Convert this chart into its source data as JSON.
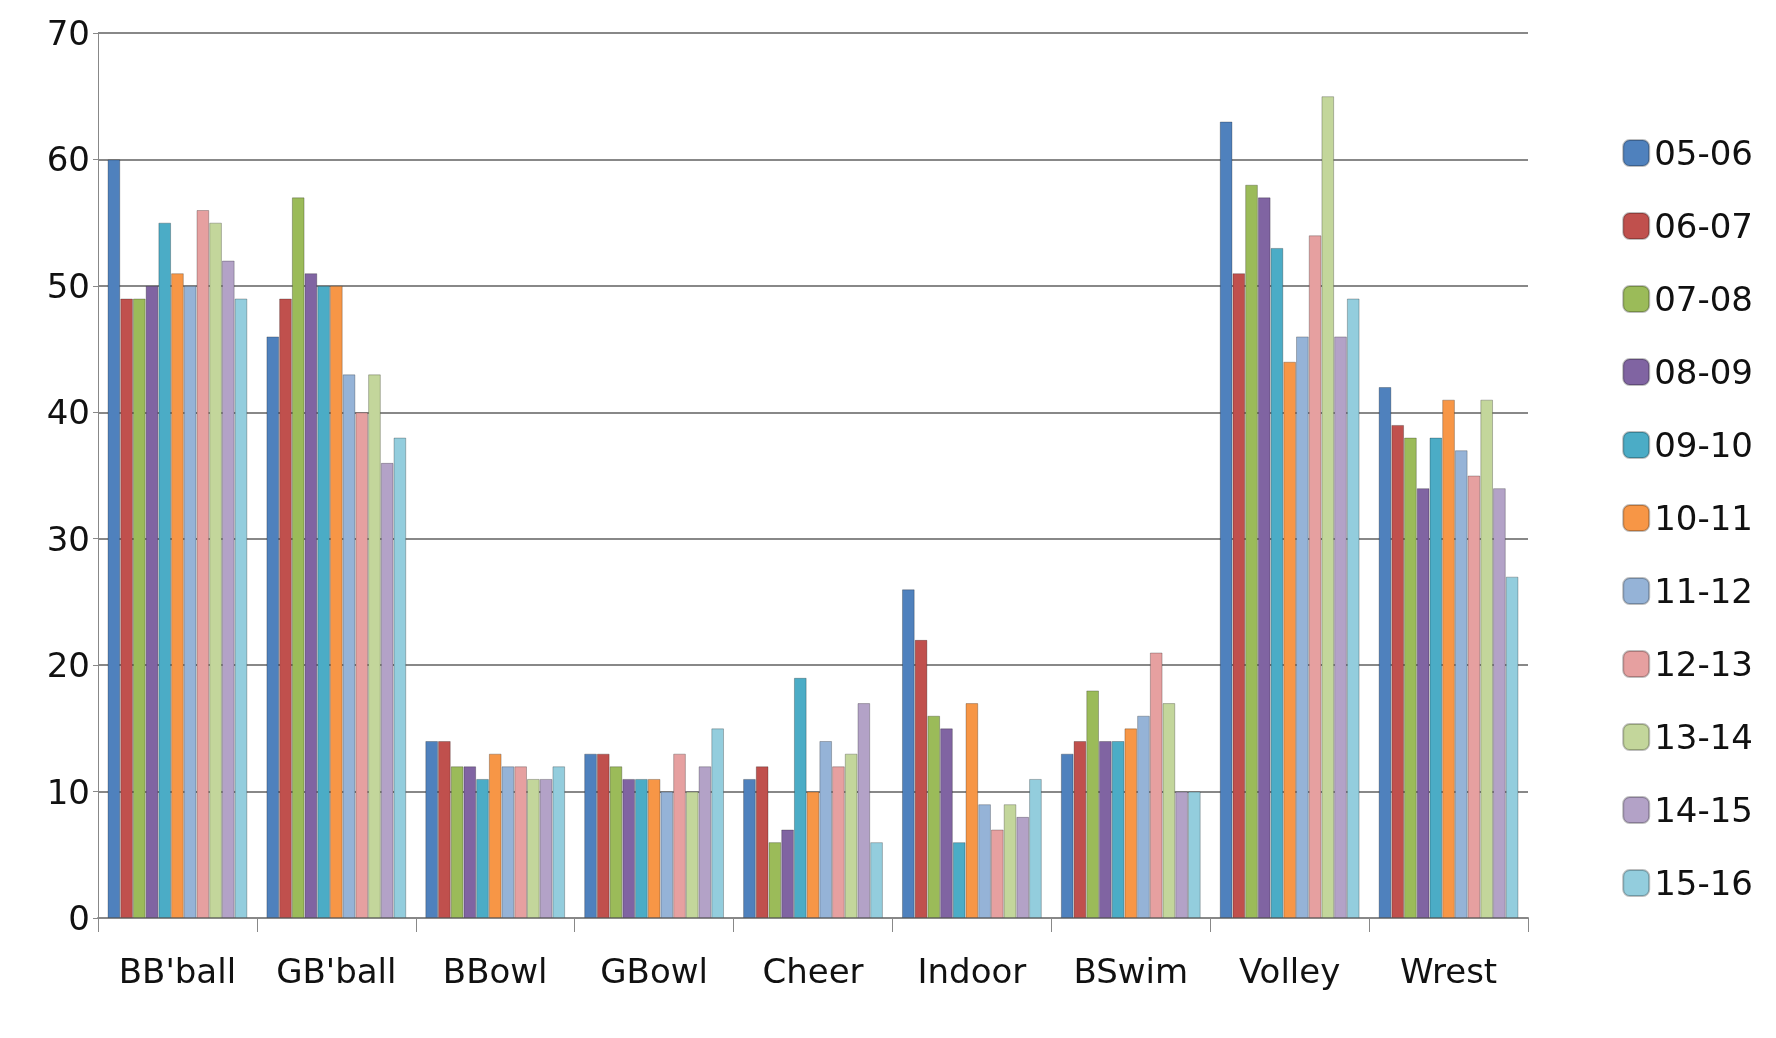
{
  "chart_data": {
    "type": "bar",
    "categories": [
      "BB'ball",
      "GB'ball",
      "BBowl",
      "GBowl",
      "Cheer",
      "Indoor",
      "BSwim",
      "Volley",
      "Wrest"
    ],
    "ylim": [
      0,
      70
    ],
    "yticks": [
      0,
      10,
      20,
      30,
      40,
      50,
      60,
      70
    ],
    "grid": "y",
    "legend": "right",
    "series": [
      {
        "name": "05-06",
        "color": "#4f81bd",
        "values": [
          60,
          46,
          14,
          13,
          11,
          26,
          13,
          63,
          42
        ]
      },
      {
        "name": "06-07",
        "color": "#c0504d",
        "values": [
          49,
          49,
          14,
          13,
          12,
          22,
          14,
          51,
          39
        ]
      },
      {
        "name": "07-08",
        "color": "#9bbb59",
        "values": [
          49,
          57,
          12,
          12,
          6,
          16,
          18,
          58,
          38
        ]
      },
      {
        "name": "08-09",
        "color": "#8064a2",
        "values": [
          50,
          51,
          12,
          11,
          7,
          15,
          14,
          57,
          34
        ]
      },
      {
        "name": "09-10",
        "color": "#4bacc6",
        "values": [
          55,
          50,
          11,
          11,
          19,
          6,
          14,
          53,
          38
        ]
      },
      {
        "name": "10-11",
        "color": "#f79646",
        "values": [
          51,
          50,
          13,
          11,
          10,
          17,
          15,
          44,
          41
        ]
      },
      {
        "name": "11-12",
        "color": "#95b3d7",
        "values": [
          50,
          43,
          12,
          10,
          14,
          9,
          16,
          46,
          37
        ]
      },
      {
        "name": "12-13",
        "color": "#e6a0a0",
        "values": [
          56,
          40,
          12,
          13,
          12,
          7,
          21,
          54,
          35
        ]
      },
      {
        "name": "13-14",
        "color": "#c3d69b",
        "values": [
          55,
          43,
          11,
          10,
          13,
          9,
          17,
          65,
          41
        ]
      },
      {
        "name": "14-15",
        "color": "#b3a2c7",
        "values": [
          52,
          36,
          11,
          12,
          17,
          8,
          10,
          46,
          34
        ]
      },
      {
        "name": "15-16",
        "color": "#93cddd",
        "values": [
          49,
          38,
          12,
          15,
          6,
          11,
          10,
          49,
          27
        ]
      }
    ]
  }
}
